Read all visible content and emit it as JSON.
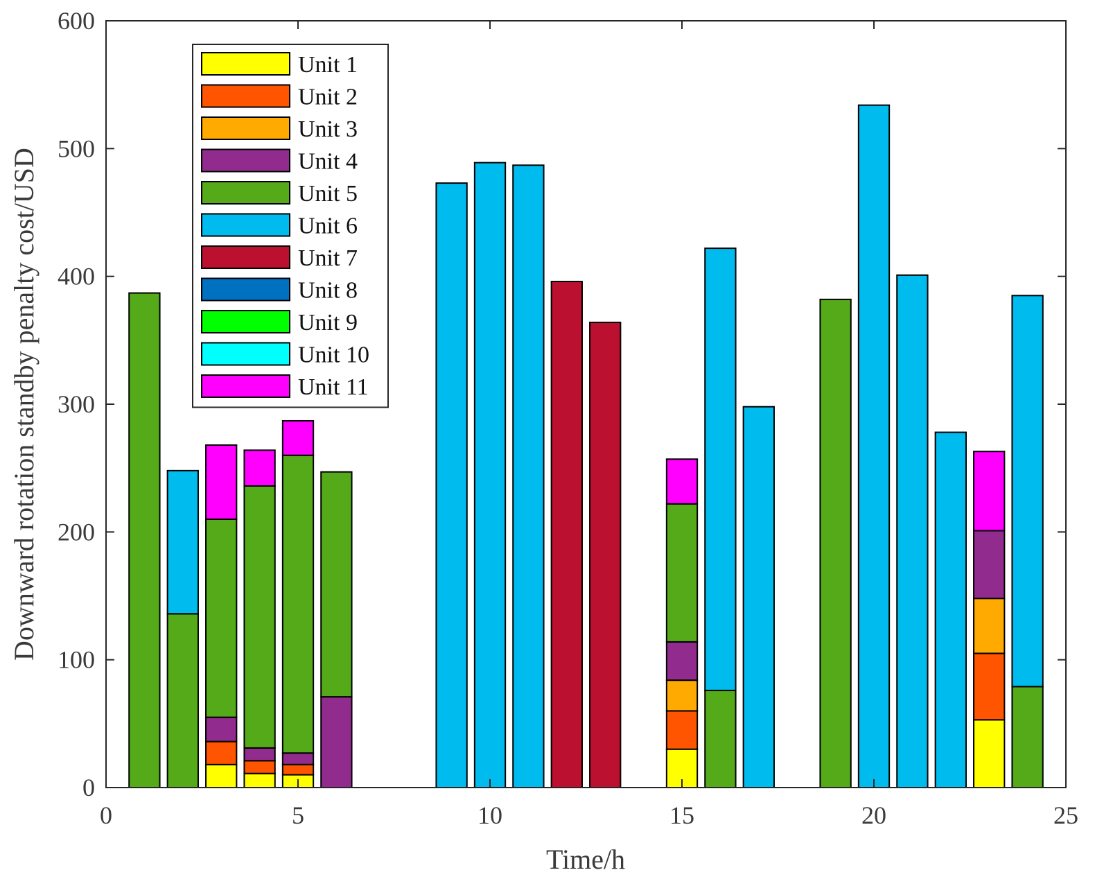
{
  "chart_data": {
    "type": "bar",
    "stacked": true,
    "xlabel": "Time/h",
    "ylabel": "Downward rotation standby penalty cost/USD",
    "xlim": [
      0,
      25
    ],
    "ylim": [
      0,
      600
    ],
    "xticks": [
      0,
      5,
      10,
      15,
      20,
      25
    ],
    "yticks": [
      0,
      100,
      200,
      300,
      400,
      500,
      600
    ],
    "grid": false,
    "legend_position": "top-left",
    "x": [
      1,
      2,
      3,
      4,
      5,
      6,
      7,
      8,
      9,
      10,
      11,
      12,
      13,
      14,
      15,
      16,
      17,
      18,
      19,
      20,
      21,
      22,
      23,
      24
    ],
    "series": [
      {
        "name": "Unit 1",
        "color": "#FFFF00",
        "values": [
          0,
          0,
          18,
          11,
          10,
          0,
          0,
          0,
          0,
          0,
          0,
          0,
          0,
          0,
          30,
          0,
          0,
          0,
          0,
          0,
          0,
          0,
          53,
          0
        ]
      },
      {
        "name": "Unit 2",
        "color": "#FF5500",
        "values": [
          0,
          0,
          18,
          10,
          8,
          0,
          0,
          0,
          0,
          0,
          0,
          0,
          0,
          0,
          30,
          0,
          0,
          0,
          0,
          0,
          0,
          0,
          52,
          0
        ]
      },
      {
        "name": "Unit 3",
        "color": "#FFAA00",
        "values": [
          0,
          0,
          0,
          0,
          0,
          0,
          0,
          0,
          0,
          0,
          0,
          0,
          0,
          0,
          24,
          0,
          0,
          0,
          0,
          0,
          0,
          0,
          43,
          0
        ]
      },
      {
        "name": "Unit 4",
        "color": "#922B8E",
        "values": [
          0,
          0,
          19,
          10,
          9,
          71,
          0,
          0,
          0,
          0,
          0,
          0,
          0,
          0,
          30,
          0,
          0,
          0,
          0,
          0,
          0,
          0,
          53,
          0
        ]
      },
      {
        "name": "Unit 5",
        "color": "#55AA1A",
        "values": [
          387,
          136,
          155,
          205,
          233,
          176,
          0,
          0,
          0,
          0,
          0,
          0,
          0,
          0,
          108,
          76,
          0,
          0,
          382,
          0,
          0,
          0,
          0,
          79
        ]
      },
      {
        "name": "Unit 6",
        "color": "#00BBEE",
        "values": [
          0,
          112,
          0,
          0,
          0,
          0,
          0,
          0,
          473,
          489,
          487,
          0,
          0,
          0,
          0,
          346,
          298,
          0,
          0,
          534,
          401,
          278,
          0,
          306
        ]
      },
      {
        "name": "Unit 7",
        "color": "#BB1030",
        "values": [
          0,
          0,
          0,
          0,
          0,
          0,
          0,
          0,
          0,
          0,
          0,
          396,
          364,
          0,
          0,
          0,
          0,
          0,
          0,
          0,
          0,
          0,
          0,
          0
        ]
      },
      {
        "name": "Unit 8",
        "color": "#0070C0",
        "values": [
          0,
          0,
          0,
          0,
          0,
          0,
          0,
          0,
          0,
          0,
          0,
          0,
          0,
          0,
          0,
          0,
          0,
          0,
          0,
          0,
          0,
          0,
          0,
          0
        ]
      },
      {
        "name": "Unit 9",
        "color": "#00FF00",
        "values": [
          0,
          0,
          0,
          0,
          0,
          0,
          0,
          0,
          0,
          0,
          0,
          0,
          0,
          0,
          0,
          0,
          0,
          0,
          0,
          0,
          0,
          0,
          0,
          0
        ]
      },
      {
        "name": "Unit 10",
        "color": "#00FFFF",
        "values": [
          0,
          0,
          0,
          0,
          0,
          0,
          0,
          0,
          0,
          0,
          0,
          0,
          0,
          0,
          0,
          0,
          0,
          0,
          0,
          0,
          0,
          0,
          0,
          0
        ]
      },
      {
        "name": "Unit 11",
        "color": "#FF00FF",
        "values": [
          0,
          0,
          58,
          28,
          27,
          0,
          0,
          0,
          0,
          0,
          0,
          0,
          0,
          0,
          35,
          0,
          0,
          0,
          0,
          0,
          0,
          0,
          62,
          0
        ]
      }
    ]
  }
}
